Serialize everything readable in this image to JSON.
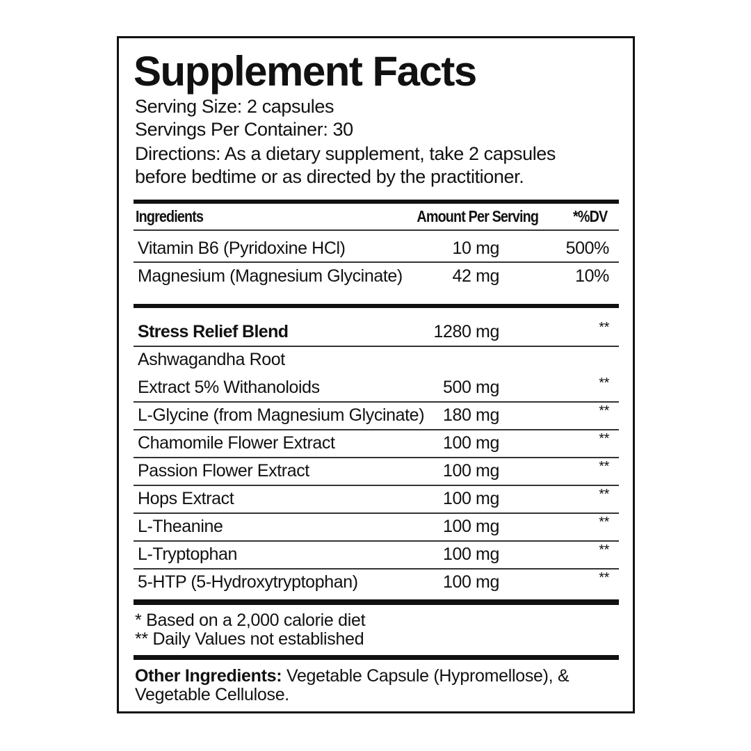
{
  "title": "Supplement Facts",
  "serving_size": "Serving Size: 2 capsules",
  "servings_per_container": "Servings Per Container: 30",
  "directions_line1": "Directions:  As a dietary supplement, take 2 capsules",
  "directions_line2": "before bedtime or as directed by the practitioner.",
  "table_header": {
    "ingredients": "Ingredients",
    "amount": "Amount Per Serving",
    "dv": "*%DV"
  },
  "nutrients": [
    {
      "name": "Vitamin B6 (Pyridoxine HCl)",
      "amount": "10 mg",
      "dv": "500%"
    },
    {
      "name": "Magnesium (Magnesium Glycinate)",
      "amount": "42 mg",
      "dv": "10%"
    }
  ],
  "blend": {
    "name": "Stress Relief Blend",
    "amount": "1280 mg",
    "dv": "**"
  },
  "blend_items": [
    {
      "name": "Ashwagandha Root",
      "name2": "Extract 5% Withanoloids",
      "amount": "500 mg",
      "dv": "**"
    },
    {
      "name": "L-Glycine (from Magnesium Glycinate)",
      "amount": "180 mg",
      "dv": "**"
    },
    {
      "name": "Chamomile Flower Extract",
      "amount": "100 mg",
      "dv": "**"
    },
    {
      "name": "Passion Flower Extract",
      "amount": "100 mg",
      "dv": "**"
    },
    {
      "name": "Hops Extract",
      "amount": "100 mg",
      "dv": "**"
    },
    {
      "name": "L-Theanine",
      "amount": "100 mg",
      "dv": "**"
    },
    {
      "name": "L-Tryptophan",
      "amount": "100 mg",
      "dv": "**"
    },
    {
      "name": "5-HTP (5-Hydroxytryptophan)",
      "amount": "100 mg",
      "dv": "**"
    }
  ],
  "footnotes": [
    "* Based on a 2,000 calorie diet",
    "** Daily Values not established"
  ],
  "other_ingredients": {
    "label": "Other Ingredients:",
    "text": " Vegetable Capsule (Hypromellose), &",
    "text2": "Vegetable Cellulose."
  }
}
